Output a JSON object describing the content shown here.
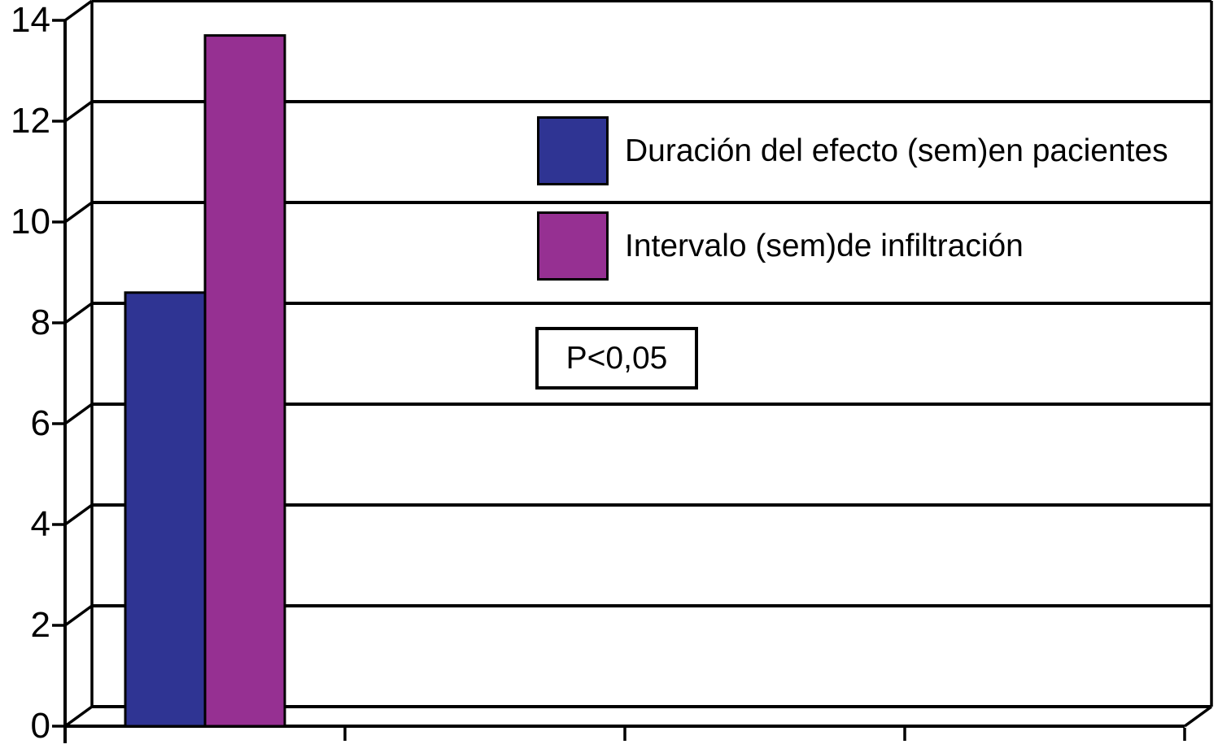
{
  "chart_data": {
    "type": "bar",
    "style_3d": true,
    "title": "",
    "xlabel": "",
    "ylabel": "",
    "y_axis": {
      "min": 0,
      "max": 14,
      "tick_step": 2,
      "tick_labels": [
        "0",
        "2",
        "4",
        "6",
        "8",
        "10",
        "12",
        "14"
      ]
    },
    "x_axis": {
      "tick_labels": [],
      "tick_count": 4
    },
    "categories": [
      ""
    ],
    "series": [
      {
        "name": "Duración del efecto (sem)en pacientes",
        "values": [
          8.6
        ],
        "color": "#2F3493"
      },
      {
        "name": "Intervalo (sem)de infiltración",
        "values": [
          13.7
        ],
        "color": "#963092"
      }
    ],
    "legend": {
      "position": "inside-top-right"
    },
    "annotations": [
      {
        "text": "P<0,05",
        "boxed": true
      }
    ],
    "grid": true,
    "background": "#FFFFFF",
    "line_color": "#000000"
  }
}
